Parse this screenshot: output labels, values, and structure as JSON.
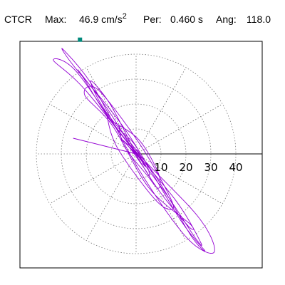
{
  "header": {
    "station": "CTCR",
    "max_label": "Max:",
    "max_value": "46.9 cm/s",
    "max_exp": "2",
    "per_label": "Per:",
    "per_value": "0.460 s",
    "ang_label": "Ang:",
    "ang_value": "118.0"
  },
  "chart_data": {
    "type": "line",
    "subtype": "polar-orbit",
    "title": "",
    "rings": [
      10,
      20,
      30,
      40
    ],
    "radial_tick_labels": [
      "10",
      "20",
      "30",
      "40"
    ],
    "grid": true,
    "grid_style": "dotted",
    "spokes_deg": [
      0,
      30,
      60,
      90,
      120,
      150,
      180,
      210,
      240,
      270,
      300,
      330
    ],
    "xlim": [
      -50,
      50
    ],
    "ylim": [
      -50,
      50
    ],
    "series": [
      {
        "color": "#9400d3",
        "max_amplitude": 46.9,
        "principal_angle_deg": 118.0,
        "x": [
          0.0,
          -10.5,
          -18.2,
          -12.4,
          6.8,
          21.9,
          27.5,
          17.6,
          -4.3,
          -25.1,
          -29.3,
          -17.2,
          1.5,
          20.3,
          31.3,
          24.8,
          -3.1,
          -24.1,
          -33.1,
          -19.5,
          9.4,
          23.4,
          25.8,
          15.8,
          -8.4,
          -21.0,
          -22.4,
          -10.2,
          7.8,
          20.8,
          21.5,
          5.2,
          -9.3,
          -20.6,
          -15.3,
          0.9,
          12.2,
          14.8,
          7.9,
          -7.2,
          -11.5,
          -9.9,
          1.1,
          8.9,
          8.9,
          4.2,
          -4.6,
          -6.8,
          -5.5,
          -1.0,
          4.1,
          5.3,
          3.5,
          -1.8,
          -5.2,
          -3.2,
          0.8,
          2.8,
          4.0,
          1.2,
          -2.1,
          -2.9,
          -1.9,
          0.6,
          2.0,
          1.4,
          -0.5,
          -1.6,
          -1.2,
          0.1,
          0.9,
          0.7,
          0.0
        ],
        "y": [
          0.0,
          20.1,
          29.3,
          17.4,
          -7.4,
          -32.6,
          -38.7,
          -26.2,
          9.7,
          35.4,
          41.9,
          27.0,
          -6.9,
          -33.6,
          -39.4,
          -25.1,
          4.4,
          33.2,
          37.4,
          24.6,
          -12.4,
          -33.2,
          -35.3,
          -18.5,
          10.8,
          30.3,
          32.5,
          16.1,
          -12.8,
          -28.8,
          -28.0,
          -13.7,
          11.1,
          23.6,
          25.8,
          4.8,
          -14.5,
          -22.0,
          -18.6,
          1.9,
          14.4,
          13.3,
          5.7,
          -7.7,
          -13.8,
          -8.3,
          2.8,
          10.9,
          8.7,
          4.3,
          -3.9,
          -8.6,
          -6.1,
          1.5,
          5.4,
          3.7,
          1.1,
          -4.0,
          -4.9,
          -1.2,
          2.1,
          2.9,
          1.6,
          -0.8,
          -2.0,
          -1.4,
          0.5,
          1.5,
          1.0,
          -0.2,
          -0.9,
          -0.6,
          0.0
        ],
        "radial_line": {
          "angle_deg": 166,
          "radius": 26
        },
        "start_marker": {
          "x": -22.5,
          "y": 45.8,
          "color": "#00897b"
        }
      }
    ]
  }
}
